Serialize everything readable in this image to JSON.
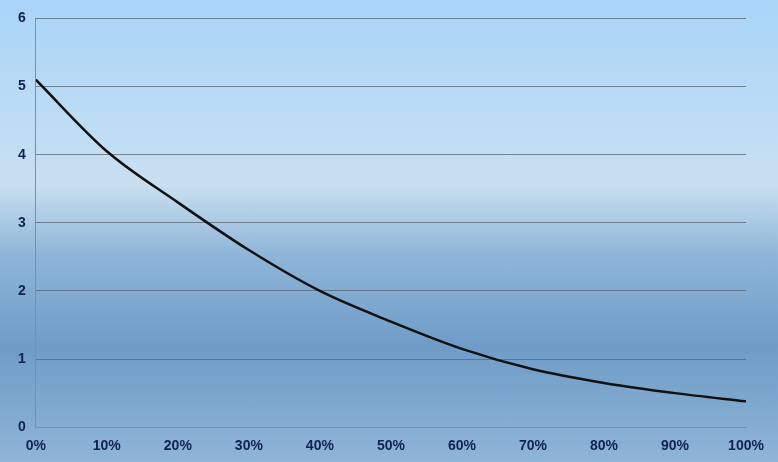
{
  "chart_data": {
    "type": "line",
    "x": [
      0,
      10,
      20,
      30,
      40,
      50,
      60,
      70,
      80,
      90,
      100
    ],
    "values": [
      5.1,
      4.05,
      3.3,
      2.6,
      2.0,
      1.55,
      1.15,
      0.85,
      0.65,
      0.5,
      0.38
    ],
    "color": "#111111",
    "marker": "none",
    "line_style": "solid",
    "xlim": [
      0,
      100
    ],
    "xticks": [
      {
        "value": 0,
        "label": "0%"
      },
      {
        "value": 10,
        "label": "10%"
      },
      {
        "value": 20,
        "label": "20%"
      },
      {
        "value": 30,
        "label": "30%"
      },
      {
        "value": 40,
        "label": "40%"
      },
      {
        "value": 50,
        "label": "50%"
      },
      {
        "value": 60,
        "label": "60%"
      },
      {
        "value": 70,
        "label": "70%"
      },
      {
        "value": 80,
        "label": "80%"
      },
      {
        "value": 90,
        "label": "90%"
      },
      {
        "value": 100,
        "label": "100%"
      }
    ],
    "ylim": [
      0,
      6
    ],
    "yticks": [
      0,
      1,
      2,
      3,
      4,
      5,
      6
    ],
    "grid": true
  }
}
